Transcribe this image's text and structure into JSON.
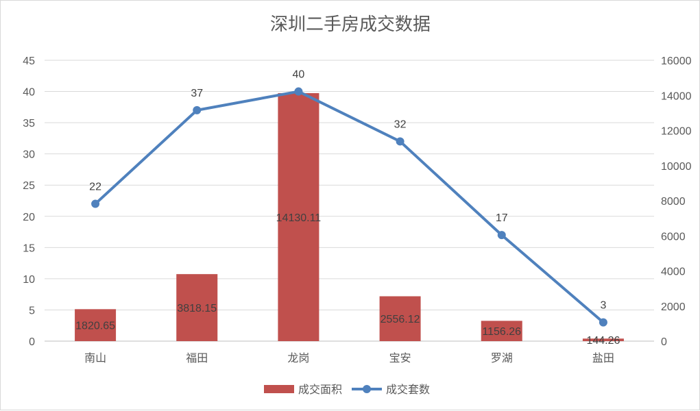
{
  "chart_data": {
    "type": "bar",
    "title": "深圳二手房成交数据",
    "categories": [
      "南山",
      "福田",
      "龙岗",
      "宝安",
      "罗湖",
      "盐田"
    ],
    "series": [
      {
        "name": "成交面积",
        "type": "bar",
        "axis": "right",
        "values": [
          1820.65,
          3818.15,
          14130.11,
          2556.12,
          1156.26,
          144.26
        ],
        "labels": [
          "1820.65",
          "3818.15",
          "14130.11",
          "2556.12",
          "1156.26",
          "144.26"
        ],
        "color": "#c0504d"
      },
      {
        "name": "成交套数",
        "type": "line",
        "axis": "left",
        "values": [
          22,
          37,
          40,
          32,
          17,
          3
        ],
        "labels": [
          "22",
          "37",
          "40",
          "32",
          "17",
          "3"
        ],
        "color": "#4f81bd"
      }
    ],
    "left_axis": {
      "ylim": [
        0,
        45
      ],
      "ticks": [
        "0",
        "5",
        "10",
        "15",
        "20",
        "25",
        "30",
        "35",
        "40",
        "45"
      ]
    },
    "right_axis": {
      "ylim": [
        0,
        16000
      ],
      "ticks": [
        "0",
        "2000",
        "4000",
        "6000",
        "8000",
        "10000",
        "12000",
        "14000",
        "16000"
      ]
    },
    "grid": true,
    "legend": "bottom"
  }
}
